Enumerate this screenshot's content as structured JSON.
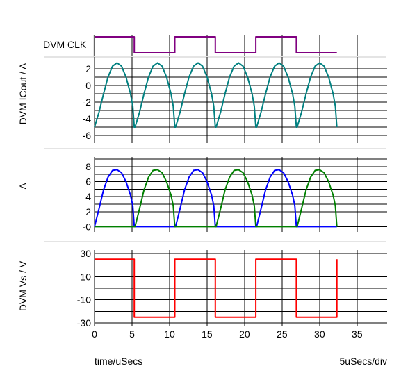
{
  "chart_data": [
    {
      "type": "line",
      "ylabel": "DVM CLK",
      "xlim": [
        0,
        39
      ],
      "series": [
        {
          "color": "#800080",
          "step": true,
          "x": [
            0,
            5.3,
            5.3,
            10.7,
            10.7,
            16.1,
            16.1,
            21.5,
            21.5,
            26.9,
            26.9,
            32.3
          ],
          "y": [
            1,
            1,
            0,
            0,
            1,
            1,
            0,
            0,
            1,
            1,
            0,
            0
          ]
        }
      ]
    },
    {
      "type": "line",
      "ylabel": "DVM ICout / A",
      "ylim": [
        -6.9,
        2.9
      ],
      "yticks": [
        "2",
        "0",
        "-2",
        "-4",
        "-6"
      ],
      "yticks_values": [
        2,
        0,
        -2,
        -4,
        -6
      ],
      "series": [
        {
          "color": "#008080",
          "x": [
            0,
            0.6,
            1.2,
            1.8,
            2.4,
            3.0,
            3.6,
            4.2,
            4.8,
            5.1,
            5.3,
            5.4,
            6.0,
            6.6,
            7.2,
            7.8,
            8.4,
            9.0,
            9.6,
            10.2,
            10.5,
            10.7,
            10.8,
            11.4,
            12.0,
            12.6,
            13.2,
            13.8,
            14.4,
            15.0,
            15.6,
            15.9,
            16.1,
            16.2,
            16.8,
            17.4,
            18.0,
            18.6,
            19.2,
            19.8,
            20.4,
            21.0,
            21.3,
            21.5,
            21.6,
            22.2,
            22.8,
            23.4,
            24.0,
            24.6,
            25.2,
            25.8,
            26.4,
            26.7,
            26.9,
            27.0,
            27.6,
            28.2,
            28.8,
            29.4,
            30.0,
            30.6,
            31.2,
            31.8,
            32.1,
            32.3
          ],
          "y": [
            -5,
            -3.2,
            -1.0,
            1.0,
            2.3,
            2.7,
            2.3,
            1.0,
            -1.0,
            -2.5,
            -5,
            -5,
            -3.2,
            -1.0,
            1.0,
            2.3,
            2.7,
            2.3,
            1.0,
            -1.0,
            -2.5,
            -5,
            -5,
            -3.2,
            -1.0,
            1.0,
            2.3,
            2.7,
            2.3,
            1.0,
            -1.0,
            -2.5,
            -5,
            -5,
            -3.2,
            -1.0,
            1.0,
            2.3,
            2.7,
            2.3,
            1.0,
            -1.0,
            -2.5,
            -5,
            -5,
            -3.2,
            -1.0,
            1.0,
            2.3,
            2.7,
            2.3,
            1.0,
            -1.0,
            -2.5,
            -5,
            -5,
            -3.2,
            -1.0,
            1.0,
            2.3,
            2.7,
            2.3,
            1.0,
            -1.0,
            -2.5,
            -5
          ]
        }
      ]
    },
    {
      "type": "line",
      "ylabel": "A",
      "ylim": [
        -0.7,
        9.3
      ],
      "yticks": [
        "8",
        "6",
        "4",
        "2",
        "-0"
      ],
      "yticks_values": [
        8,
        6,
        4,
        2,
        0
      ],
      "series": [
        {
          "color": "#0000ff",
          "x": [
            0,
            0.6,
            1.2,
            1.8,
            2.4,
            3.0,
            3.6,
            4.2,
            4.8,
            5.1,
            5.3,
            5.4,
            10.7,
            10.8,
            11.4,
            12.0,
            12.6,
            13.2,
            13.8,
            14.4,
            15.0,
            15.6,
            15.9,
            16.1,
            16.2,
            21.5,
            21.6,
            22.2,
            22.8,
            23.4,
            24.0,
            24.6,
            25.2,
            25.8,
            26.4,
            26.7,
            26.9,
            27.0,
            32.3
          ],
          "y": [
            0,
            2.4,
            4.9,
            6.6,
            7.5,
            7.6,
            7.2,
            6.0,
            4.2,
            2.8,
            0,
            0,
            0,
            0,
            2.4,
            4.9,
            6.6,
            7.5,
            7.6,
            7.2,
            6.0,
            4.2,
            2.8,
            0,
            0,
            0,
            0,
            2.4,
            4.9,
            6.6,
            7.5,
            7.6,
            7.2,
            6.0,
            4.2,
            2.8,
            0,
            0,
            0
          ]
        },
        {
          "color": "#008000",
          "x": [
            0,
            5.3,
            5.4,
            6.0,
            6.6,
            7.2,
            7.8,
            8.4,
            9.0,
            9.6,
            10.2,
            10.5,
            10.7,
            10.8,
            16.1,
            16.2,
            16.8,
            17.4,
            18.0,
            18.6,
            19.2,
            19.8,
            20.4,
            21.0,
            21.3,
            21.5,
            21.6,
            26.9,
            27.0,
            27.6,
            28.2,
            28.8,
            29.4,
            30.0,
            30.6,
            31.2,
            31.8,
            32.1,
            32.3
          ],
          "y": [
            0,
            0,
            0,
            2.4,
            4.9,
            6.6,
            7.5,
            7.6,
            7.2,
            6.0,
            4.2,
            2.8,
            0,
            0,
            0,
            0,
            2.4,
            4.9,
            6.6,
            7.5,
            7.6,
            7.2,
            6.0,
            4.2,
            2.8,
            0,
            0,
            0,
            0,
            2.4,
            4.9,
            6.6,
            7.5,
            7.6,
            7.2,
            6.0,
            4.2,
            2.8,
            0
          ]
        }
      ]
    },
    {
      "type": "line",
      "ylabel": "DVM Vs / V",
      "ylim": [
        -33,
        33
      ],
      "xlim": [
        0,
        39
      ],
      "yticks": [
        "30",
        "10",
        "-10",
        "-30"
      ],
      "yticks_values": [
        30,
        10,
        -10,
        -30
      ],
      "xticks": [
        "0",
        "5",
        "10",
        "15",
        "20",
        "25",
        "30",
        "35"
      ],
      "xticks_values": [
        0,
        5,
        10,
        15,
        20,
        25,
        30,
        35
      ],
      "xlabel": "time/uSecs",
      "xscale_note": "5uSecs/div",
      "series": [
        {
          "color": "#ff0000",
          "x": [
            0,
            5.3,
            5.3,
            10.7,
            10.7,
            16.1,
            16.1,
            21.5,
            21.5,
            26.9,
            26.9,
            32.3,
            32.3
          ],
          "y": [
            25,
            25,
            -25,
            -25,
            25,
            25,
            -25,
            -25,
            25,
            25,
            -25,
            -25,
            25
          ]
        }
      ]
    }
  ]
}
